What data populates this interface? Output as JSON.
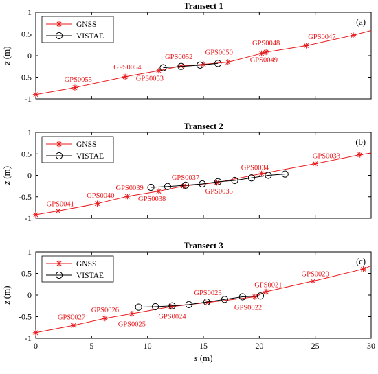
{
  "chart_data": [
    {
      "type": "line",
      "title": "Transect 1",
      "panel_label": "(a)",
      "ylabel_var": "z",
      "ylabel_unit": " (m)",
      "xlabel_var": "",
      "xlabel_unit": "",
      "xlim": [
        0,
        30
      ],
      "ylim": [
        -1,
        1
      ],
      "xticks": [
        "0",
        "5",
        "10",
        "15",
        "20",
        "25",
        "30"
      ],
      "yticks": [
        "-1",
        "-0.5",
        "0",
        "0.5",
        "1"
      ],
      "show_xticklabels": false,
      "legend": {
        "placement": "top-left",
        "entries": [
          "GNSS",
          "VISTAE"
        ]
      },
      "series": [
        {
          "name": "GNSS",
          "color": "#e8191b",
          "marker": "asterisk",
          "x": [
            0,
            3.5,
            8,
            11,
            13,
            15,
            17.2,
            20.2,
            20.6,
            24.2,
            28.4,
            30
          ],
          "y": [
            -0.9,
            -0.74,
            -0.49,
            -0.35,
            -0.24,
            -0.2,
            -0.15,
            0.05,
            0.08,
            0.23,
            0.47,
            0.58
          ],
          "marker_x": [
            0,
            3.5,
            8,
            11,
            13,
            15,
            17.2,
            20.2,
            20.6,
            24.2,
            28.4
          ],
          "marker_y": [
            -0.9,
            -0.74,
            -0.49,
            -0.35,
            -0.24,
            -0.2,
            -0.15,
            0.05,
            0.08,
            0.23,
            0.47
          ]
        },
        {
          "name": "VISTAE",
          "color": "#000000",
          "marker": "circle",
          "x": [
            11.4,
            13,
            14.7,
            16.3
          ],
          "y": [
            -0.28,
            -0.25,
            -0.22,
            -0.18
          ]
        }
      ],
      "annotations": [
        {
          "text": "GPS0055",
          "x": 3.8,
          "y": -0.6
        },
        {
          "text": "GPS0054",
          "x": 8.2,
          "y": -0.32
        },
        {
          "text": "GPS0053",
          "x": 10.2,
          "y": -0.58
        },
        {
          "text": "GPS0052",
          "x": 12.8,
          "y": -0.08
        },
        {
          "text": "GPS0050",
          "x": 16.4,
          "y": 0.02
        },
        {
          "text": "GPS0049",
          "x": 20.4,
          "y": -0.15
        },
        {
          "text": "GPS0048",
          "x": 20.6,
          "y": 0.24
        },
        {
          "text": "GPS0047",
          "x": 25.6,
          "y": 0.38
        }
      ]
    },
    {
      "type": "line",
      "title": "Transect 2",
      "panel_label": "(b)",
      "ylabel_var": "z",
      "ylabel_unit": " (m)",
      "xlabel_var": "",
      "xlabel_unit": "",
      "xlim": [
        0,
        30
      ],
      "ylim": [
        -1,
        1
      ],
      "xticks": [
        "0",
        "5",
        "10",
        "15",
        "20",
        "25",
        "30"
      ],
      "yticks": [
        "-1",
        "-0.5",
        "0",
        "0.5",
        "1"
      ],
      "show_xticklabels": false,
      "legend": {
        "placement": "top-left",
        "entries": [
          "GNSS",
          "VISTAE"
        ]
      },
      "series": [
        {
          "name": "GNSS",
          "color": "#e8191b",
          "marker": "asterisk",
          "x": [
            0,
            2,
            5.5,
            8.2,
            11,
            13.2,
            16.2,
            20.2,
            25,
            29,
            30
          ],
          "y": [
            -0.92,
            -0.83,
            -0.66,
            -0.49,
            -0.37,
            -0.25,
            -0.17,
            0.04,
            0.27,
            0.48,
            0.52
          ],
          "marker_x": [
            0,
            2,
            5.5,
            8.2,
            11,
            13.2,
            16.2,
            20.2,
            25,
            29
          ],
          "marker_y": [
            -0.92,
            -0.83,
            -0.66,
            -0.49,
            -0.37,
            -0.25,
            -0.17,
            0.04,
            0.27,
            0.48
          ]
        },
        {
          "name": "VISTAE",
          "color": "#000000",
          "marker": "circle",
          "x": [
            10.3,
            11.8,
            13.4,
            14.9,
            16.3,
            17.8,
            19.3,
            20.8,
            22.3
          ],
          "y": [
            -0.28,
            -0.26,
            -0.23,
            -0.2,
            -0.15,
            -0.12,
            -0.06,
            0.0,
            0.03
          ]
        }
      ],
      "annotations": [
        {
          "text": "GPS0041",
          "x": 2.2,
          "y": -0.72
        },
        {
          "text": "GPS0040",
          "x": 5.8,
          "y": -0.52
        },
        {
          "text": "GPS0039",
          "x": 8.4,
          "y": -0.34
        },
        {
          "text": "GPS0038",
          "x": 10.4,
          "y": -0.6
        },
        {
          "text": "GPS0037",
          "x": 13.4,
          "y": -0.1
        },
        {
          "text": "GPS0035",
          "x": 16.4,
          "y": -0.42
        },
        {
          "text": "GPS0034",
          "x": 19.6,
          "y": 0.13
        },
        {
          "text": "GPS0033",
          "x": 26,
          "y": 0.4
        }
      ]
    },
    {
      "type": "line",
      "title": "Transect 3",
      "panel_label": "(c)",
      "ylabel_var": "z",
      "ylabel_unit": " (m)",
      "xlabel_var": "s",
      "xlabel_unit": " (m)",
      "xlim": [
        0,
        30
      ],
      "ylim": [
        -1,
        1
      ],
      "xticks": [
        "0",
        "5",
        "10",
        "15",
        "20",
        "25",
        "30"
      ],
      "yticks": [
        "-1",
        "-0.5",
        "0",
        "0.5",
        "1"
      ],
      "show_xticklabels": true,
      "legend": {
        "placement": "top-left",
        "entries": [
          "GNSS",
          "VISTAE"
        ]
      },
      "series": [
        {
          "name": "GNSS",
          "color": "#e8191b",
          "marker": "asterisk",
          "x": [
            0,
            3.4,
            6.2,
            8.6,
            12.1,
            15.4,
            19.6,
            20.6,
            24.8,
            29.3,
            30
          ],
          "y": [
            -0.87,
            -0.7,
            -0.54,
            -0.43,
            -0.27,
            -0.17,
            -0.04,
            0.08,
            0.32,
            0.6,
            0.68
          ],
          "marker_x": [
            0,
            3.4,
            6.2,
            8.6,
            12.1,
            15.4,
            19.6,
            20.6,
            24.8,
            29.3
          ],
          "marker_y": [
            -0.87,
            -0.7,
            -0.54,
            -0.43,
            -0.27,
            -0.17,
            -0.04,
            0.08,
            0.32,
            0.6
          ]
        },
        {
          "name": "VISTAE",
          "color": "#000000",
          "marker": "circle",
          "x": [
            9.2,
            10.7,
            12.2,
            13.7,
            15.3,
            16.9,
            18.5,
            20.1
          ],
          "y": [
            -0.28,
            -0.27,
            -0.25,
            -0.22,
            -0.16,
            -0.1,
            -0.04,
            -0.02
          ]
        }
      ],
      "annotations": [
        {
          "text": "GPS0027",
          "x": 3.2,
          "y": -0.56
        },
        {
          "text": "GPS0026",
          "x": 6.2,
          "y": -0.4
        },
        {
          "text": "GPS0025",
          "x": 8.6,
          "y": -0.72
        },
        {
          "text": "GPS0024",
          "x": 12.2,
          "y": -0.55
        },
        {
          "text": "GPS0023",
          "x": 15.4,
          "y": 0.0
        },
        {
          "text": "GPS0022",
          "x": 19,
          "y": -0.34
        },
        {
          "text": "GPS0021",
          "x": 20.8,
          "y": 0.18
        },
        {
          "text": "GPS0020",
          "x": 25,
          "y": 0.44
        }
      ]
    }
  ]
}
